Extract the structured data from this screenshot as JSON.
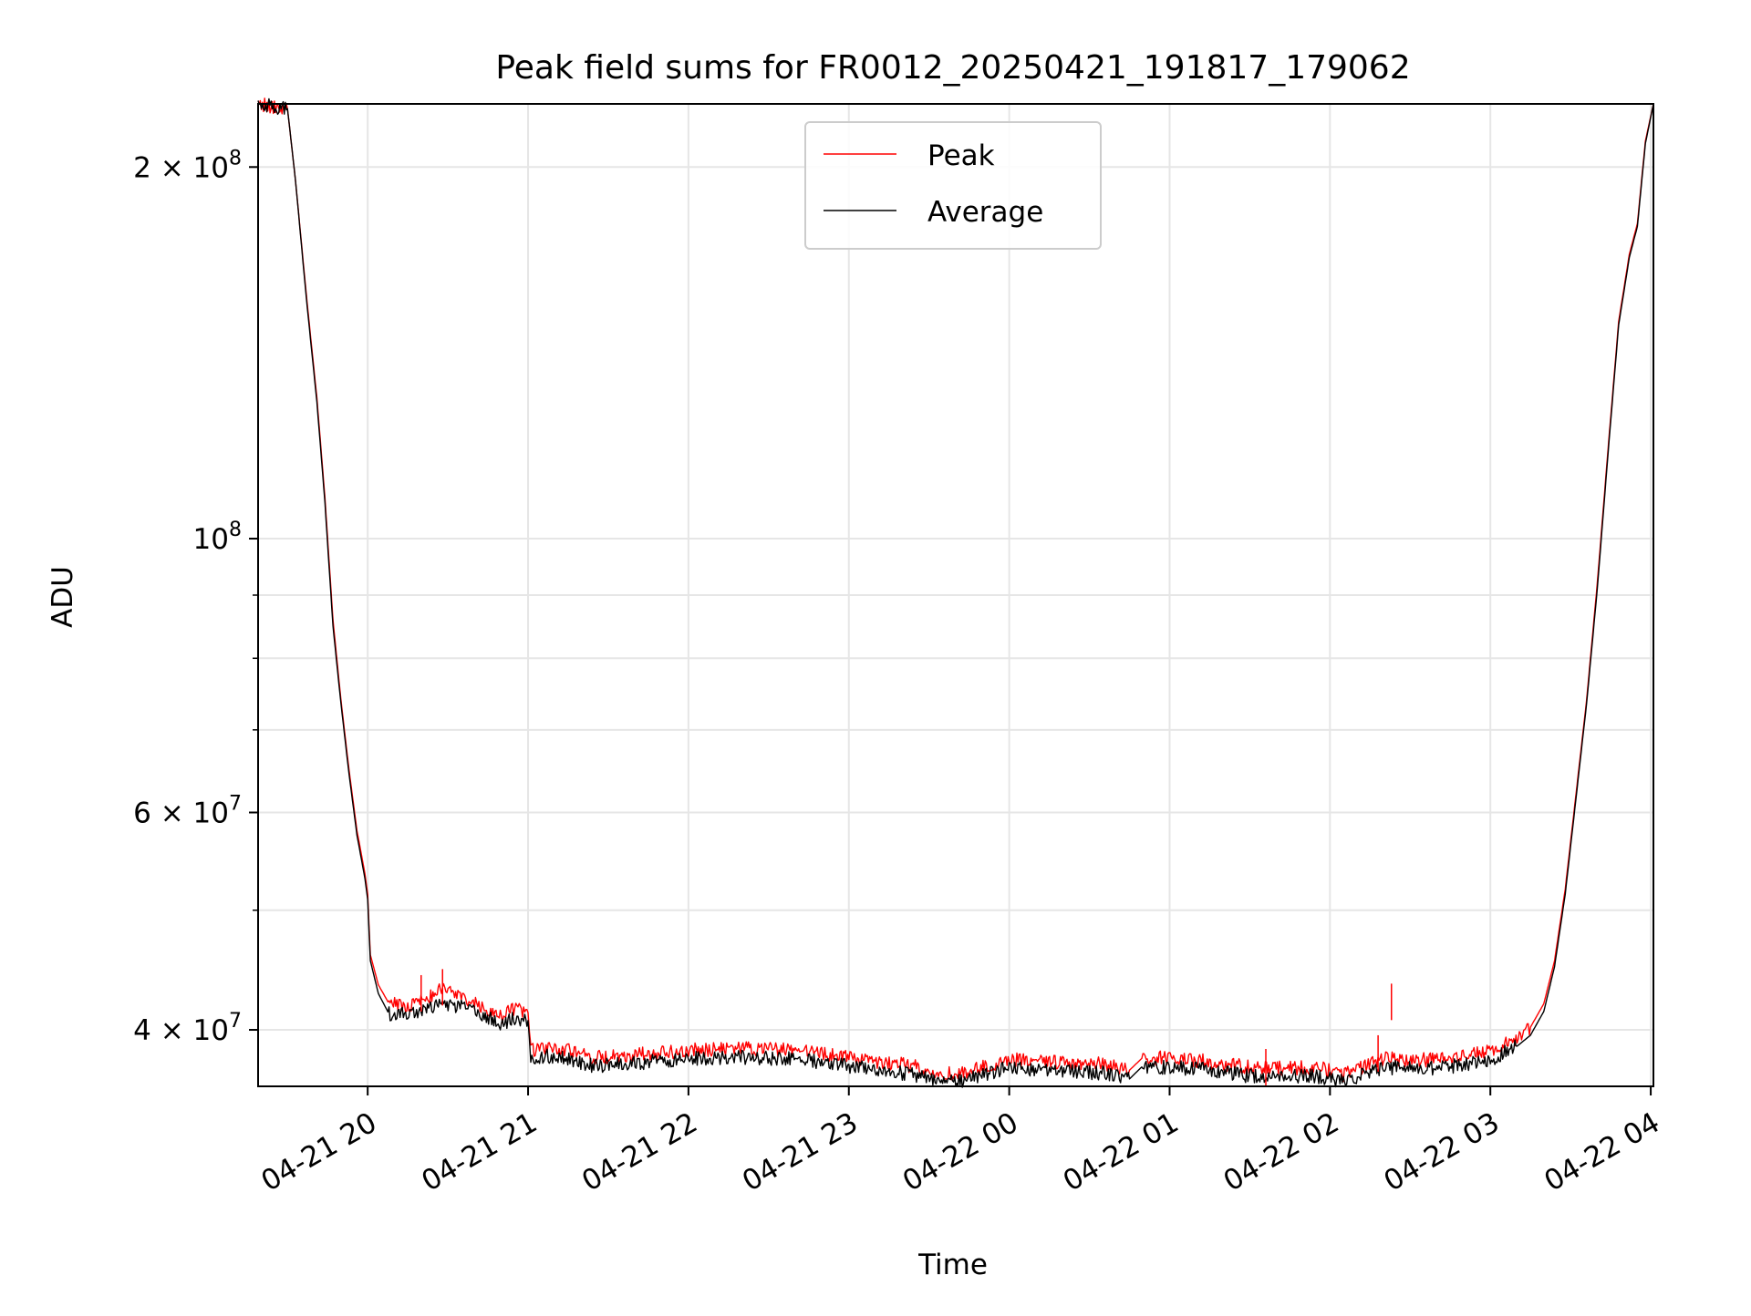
{
  "chart_data": {
    "type": "line",
    "title": "Peak field sums for FR0012_20250421_191817_179062",
    "xlabel": "Time",
    "ylabel": "ADU",
    "y_scale": "log",
    "ylim": [
      36000000,
      225000000
    ],
    "xlim": [
      "2025-04-21 19:19",
      "2025-04-22 04:01"
    ],
    "grid": true,
    "legend_position": "upper-center",
    "x_ticks": [
      {
        "t": "2025-04-21 20:00",
        "label": "04-21 20"
      },
      {
        "t": "2025-04-21 21:00",
        "label": "04-21 21"
      },
      {
        "t": "2025-04-21 22:00",
        "label": "04-21 22"
      },
      {
        "t": "2025-04-21 23:00",
        "label": "04-21 23"
      },
      {
        "t": "2025-04-22 00:00",
        "label": "04-22 00"
      },
      {
        "t": "2025-04-22 01:00",
        "label": "04-22 01"
      },
      {
        "t": "2025-04-22 02:00",
        "label": "04-22 02"
      },
      {
        "t": "2025-04-22 03:00",
        "label": "04-22 03"
      },
      {
        "t": "2025-04-22 04:00",
        "label": "04-22 04"
      }
    ],
    "y_ticks_major": [
      {
        "value": 40000000,
        "label": "4 × 10",
        "exp": "7"
      },
      {
        "value": 60000000,
        "label": "6 × 10",
        "exp": "7"
      },
      {
        "value": 100000000,
        "label": "10",
        "exp": "8"
      },
      {
        "value": 200000000,
        "label": "2 × 10",
        "exp": "8"
      }
    ],
    "y_ticks_minor": [
      50000000,
      70000000,
      80000000,
      90000000,
      300000000
    ],
    "series": [
      {
        "name": "Peak",
        "color": "#ff0000",
        "points": [
          [
            "2025-04-21 19:19",
            225000000
          ],
          [
            "2025-04-21 19:30",
            223000000
          ],
          [
            "2025-04-21 19:33",
            195000000
          ],
          [
            "2025-04-21 19:37",
            158000000
          ],
          [
            "2025-04-21 19:41",
            130000000
          ],
          [
            "2025-04-21 19:44",
            108000000
          ],
          [
            "2025-04-21 19:47",
            86000000
          ],
          [
            "2025-04-21 19:50",
            74000000
          ],
          [
            "2025-04-21 19:53",
            65000000
          ],
          [
            "2025-04-21 19:56",
            58000000
          ],
          [
            "2025-04-21 19:59",
            53500000
          ],
          [
            "2025-04-21 20:00",
            51500000
          ],
          [
            "2025-04-21 20:01",
            46000000
          ],
          [
            "2025-04-21 20:04",
            43500000
          ],
          [
            "2025-04-21 20:08",
            42000000
          ],
          [
            "2025-04-21 20:15",
            41800000
          ],
          [
            "2025-04-21 20:22",
            42300000
          ],
          [
            "2025-04-21 20:28",
            43200000
          ],
          [
            "2025-04-21 20:35",
            42500000
          ],
          [
            "2025-04-21 20:42",
            41900000
          ],
          [
            "2025-04-21 20:50",
            41000000
          ],
          [
            "2025-04-21 20:55",
            41600000
          ],
          [
            "2025-04-21 21:00",
            41300000
          ],
          [
            "2025-04-21 21:01",
            38500000
          ],
          [
            "2025-04-21 21:10",
            38700000
          ],
          [
            "2025-04-21 21:25",
            38000000
          ],
          [
            "2025-04-21 21:40",
            38200000
          ],
          [
            "2025-04-21 22:00",
            38500000
          ],
          [
            "2025-04-21 22:20",
            38600000
          ],
          [
            "2025-04-21 22:40",
            38500000
          ],
          [
            "2025-04-21 23:00",
            38000000
          ],
          [
            "2025-04-21 23:20",
            37500000
          ],
          [
            "2025-04-21 23:40",
            36800000
          ],
          [
            "2025-04-22 00:00",
            37900000
          ],
          [
            "2025-04-22 00:20",
            37600000
          ],
          [
            "2025-04-22 00:35",
            37500000
          ],
          [
            "2025-04-22 00:45",
            37100000
          ],
          [
            "2025-04-22 00:50",
            38000000
          ],
          [
            "2025-04-22 01:10",
            37800000
          ],
          [
            "2025-04-22 01:35",
            37200000
          ],
          [
            "2025-04-22 01:55",
            37300000
          ],
          [
            "2025-04-22 02:05",
            36800000
          ],
          [
            "2025-04-22 02:20",
            37900000
          ],
          [
            "2025-04-22 02:40",
            37800000
          ],
          [
            "2025-04-22 03:00",
            38400000
          ],
          [
            "2025-04-22 03:10",
            39400000
          ],
          [
            "2025-04-22 03:15",
            40200000
          ],
          [
            "2025-04-22 03:20",
            42000000
          ],
          [
            "2025-04-22 03:24",
            45500000
          ],
          [
            "2025-04-22 03:28",
            52000000
          ],
          [
            "2025-04-22 03:32",
            62000000
          ],
          [
            "2025-04-22 03:36",
            74000000
          ],
          [
            "2025-04-22 03:40",
            92000000
          ],
          [
            "2025-04-22 03:44",
            118000000
          ],
          [
            "2025-04-22 03:48",
            150000000
          ],
          [
            "2025-04-22 03:52",
            170000000
          ],
          [
            "2025-04-22 03:55",
            180000000
          ],
          [
            "2025-04-22 03:58",
            210000000
          ],
          [
            "2025-04-22 04:01",
            225000000
          ]
        ]
      },
      {
        "name": "Average",
        "color": "#000000",
        "points": [
          [
            "2025-04-21 19:19",
            225000000
          ],
          [
            "2025-04-21 19:30",
            223000000
          ],
          [
            "2025-04-21 19:33",
            195000000
          ],
          [
            "2025-04-21 19:37",
            157000000
          ],
          [
            "2025-04-21 19:41",
            129000000
          ],
          [
            "2025-04-21 19:44",
            107000000
          ],
          [
            "2025-04-21 19:47",
            85000000
          ],
          [
            "2025-04-21 19:50",
            73500000
          ],
          [
            "2025-04-21 19:53",
            64500000
          ],
          [
            "2025-04-21 19:56",
            57500000
          ],
          [
            "2025-04-21 19:59",
            53000000
          ],
          [
            "2025-04-21 20:00",
            51000000
          ],
          [
            "2025-04-21 20:01",
            45500000
          ],
          [
            "2025-04-21 20:04",
            42800000
          ],
          [
            "2025-04-21 20:08",
            41200000
          ],
          [
            "2025-04-21 20:15",
            41200000
          ],
          [
            "2025-04-21 20:22",
            41700000
          ],
          [
            "2025-04-21 20:28",
            42000000
          ],
          [
            "2025-04-21 20:35",
            41800000
          ],
          [
            "2025-04-21 20:42",
            41300000
          ],
          [
            "2025-04-21 20:50",
            40400000
          ],
          [
            "2025-04-21 20:55",
            40900000
          ],
          [
            "2025-04-21 21:00",
            40700000
          ],
          [
            "2025-04-21 21:01",
            38000000
          ],
          [
            "2025-04-21 21:10",
            38100000
          ],
          [
            "2025-04-21 21:25",
            37400000
          ],
          [
            "2025-04-21 21:40",
            37600000
          ],
          [
            "2025-04-21 22:00",
            37900000
          ],
          [
            "2025-04-21 22:20",
            38000000
          ],
          [
            "2025-04-21 22:40",
            37900000
          ],
          [
            "2025-04-21 23:00",
            37400000
          ],
          [
            "2025-04-21 23:20",
            36900000
          ],
          [
            "2025-04-21 23:40",
            36300000
          ],
          [
            "2025-04-22 00:00",
            37300000
          ],
          [
            "2025-04-22 00:20",
            37000000
          ],
          [
            "2025-04-22 00:35",
            36900000
          ],
          [
            "2025-04-22 00:45",
            36500000
          ],
          [
            "2025-04-22 00:50",
            37400000
          ],
          [
            "2025-04-22 01:10",
            37200000
          ],
          [
            "2025-04-22 01:35",
            36600000
          ],
          [
            "2025-04-22 01:55",
            36700000
          ],
          [
            "2025-04-22 02:05",
            36300000
          ],
          [
            "2025-04-22 02:20",
            37300000
          ],
          [
            "2025-04-22 02:40",
            37200000
          ],
          [
            "2025-04-22 03:00",
            37800000
          ],
          [
            "2025-04-22 03:10",
            38800000
          ],
          [
            "2025-04-22 03:15",
            39600000
          ],
          [
            "2025-04-22 03:20",
            41400000
          ],
          [
            "2025-04-22 03:24",
            45000000
          ],
          [
            "2025-04-22 03:28",
            51500000
          ],
          [
            "2025-04-22 03:32",
            61500000
          ],
          [
            "2025-04-22 03:36",
            73500000
          ],
          [
            "2025-04-22 03:40",
            91000000
          ],
          [
            "2025-04-22 03:44",
            117000000
          ],
          [
            "2025-04-22 03:48",
            149000000
          ],
          [
            "2025-04-22 03:52",
            169000000
          ],
          [
            "2025-04-22 03:55",
            179000000
          ],
          [
            "2025-04-22 03:58",
            209000000
          ],
          [
            "2025-04-22 04:01",
            225000000
          ]
        ]
      }
    ],
    "spikes": [
      {
        "t": "2025-04-21 20:28",
        "value": 44800000
      },
      {
        "t": "2025-04-21 20:20",
        "value": 44300000
      },
      {
        "t": "2025-04-22 01:36",
        "value": 38600000
      },
      {
        "t": "2025-04-22 02:18",
        "value": 39600000
      },
      {
        "t": "2025-04-22 02:23",
        "value": 43600000
      }
    ]
  }
}
